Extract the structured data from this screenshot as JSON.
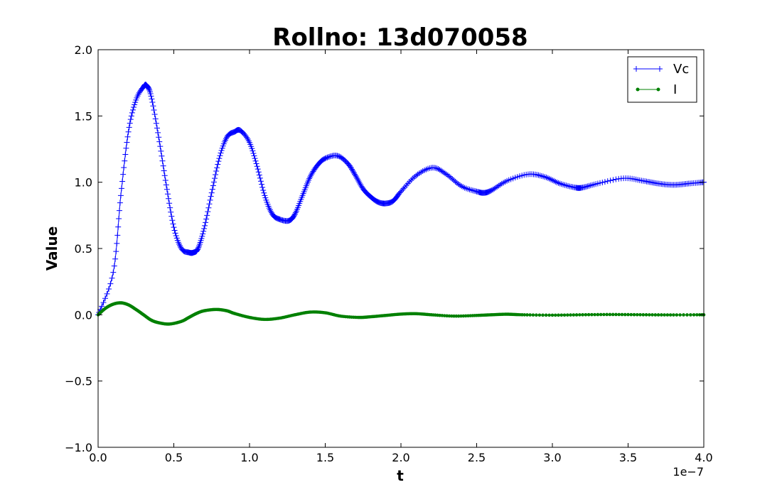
{
  "chart_data": {
    "type": "line",
    "title": "Rollno: 13d070058",
    "xlabel": "t",
    "ylabel": "Value",
    "x_offset_label": "1e−7",
    "xlim": [
      0.0,
      4.0
    ],
    "ylim": [
      -1.0,
      2.0
    ],
    "x_ticks": [
      "0.0",
      "0.5",
      "1.0",
      "1.5",
      "2.0",
      "2.5",
      "3.0",
      "3.5",
      "4.0"
    ],
    "y_ticks": [
      "−1.0",
      "−0.5",
      "0.0",
      "0.5",
      "1.0",
      "1.5",
      "2.0"
    ],
    "grid": false,
    "legend_position": "top-right",
    "series": [
      {
        "name": "Vc",
        "color": "#0000ff",
        "marker": "plus",
        "x": [
          0.0,
          0.1,
          0.15,
          0.2,
          0.25,
          0.3,
          0.32,
          0.35,
          0.4,
          0.45,
          0.5,
          0.55,
          0.6,
          0.63,
          0.66,
          0.7,
          0.75,
          0.8,
          0.85,
          0.9,
          0.94,
          1.0,
          1.05,
          1.1,
          1.15,
          1.2,
          1.26,
          1.3,
          1.35,
          1.4,
          1.45,
          1.5,
          1.58,
          1.65,
          1.7,
          1.75,
          1.8,
          1.85,
          1.9,
          1.95,
          2.0,
          2.1,
          2.21,
          2.3,
          2.4,
          2.5,
          2.55,
          2.6,
          2.7,
          2.84,
          2.95,
          3.05,
          3.15,
          3.2,
          3.3,
          3.47,
          3.6,
          3.7,
          3.8,
          3.9,
          4.0
        ],
        "y": [
          0.0,
          0.32,
          0.9,
          1.38,
          1.62,
          1.72,
          1.73,
          1.65,
          1.34,
          0.98,
          0.66,
          0.5,
          0.47,
          0.47,
          0.5,
          0.65,
          0.92,
          1.18,
          1.34,
          1.38,
          1.39,
          1.3,
          1.12,
          0.9,
          0.76,
          0.72,
          0.71,
          0.76,
          0.9,
          1.04,
          1.13,
          1.18,
          1.2,
          1.14,
          1.05,
          0.95,
          0.89,
          0.85,
          0.84,
          0.86,
          0.93,
          1.05,
          1.11,
          1.06,
          0.97,
          0.93,
          0.92,
          0.94,
          1.01,
          1.06,
          1.04,
          0.99,
          0.96,
          0.96,
          0.99,
          1.03,
          1.01,
          0.99,
          0.98,
          0.99,
          1.0
        ]
      },
      {
        "name": "I",
        "color": "#008000",
        "marker": "dot",
        "x": [
          0.0,
          0.05,
          0.1,
          0.15,
          0.2,
          0.25,
          0.3,
          0.35,
          0.4,
          0.47,
          0.55,
          0.6,
          0.65,
          0.7,
          0.78,
          0.85,
          0.9,
          1.0,
          1.1,
          1.2,
          1.3,
          1.4,
          1.5,
          1.6,
          1.72,
          1.8,
          1.9,
          2.0,
          2.1,
          2.2,
          2.35,
          2.5,
          2.6,
          2.7,
          2.8,
          3.0,
          3.2,
          3.4,
          3.6,
          3.8,
          4.0
        ],
        "y": [
          0.0,
          0.05,
          0.08,
          0.09,
          0.075,
          0.04,
          0.0,
          -0.04,
          -0.06,
          -0.07,
          -0.05,
          -0.02,
          0.01,
          0.03,
          0.04,
          0.03,
          0.01,
          -0.02,
          -0.035,
          -0.025,
          0.0,
          0.02,
          0.015,
          -0.01,
          -0.02,
          -0.015,
          -0.005,
          0.005,
          0.008,
          0.0,
          -0.01,
          -0.005,
          0.0,
          0.004,
          0.0,
          -0.003,
          0.0,
          0.002,
          0.0,
          -0.001,
          0.0
        ]
      }
    ]
  }
}
